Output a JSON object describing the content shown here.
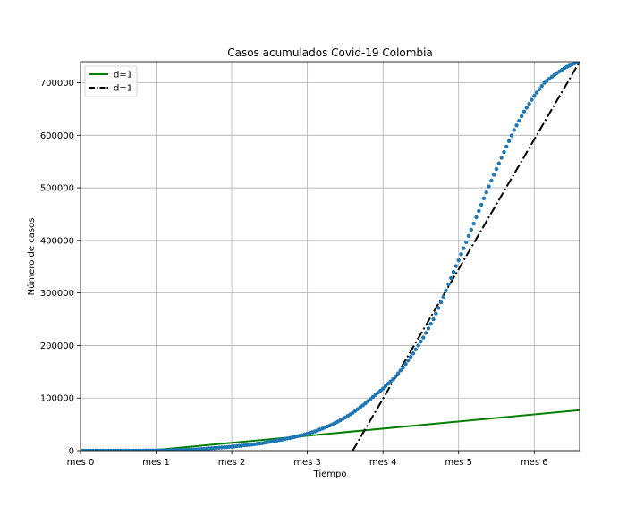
{
  "chart_data": {
    "type": "scatter",
    "title": "Casos acumulados Covid-19 Colombia",
    "xlabel": "Tiempo",
    "ylabel": "Número de casos",
    "xlim": [
      0,
      198
    ],
    "ylim": [
      0,
      740000
    ],
    "grid": true,
    "legend_position": "top-left",
    "x_ticks": [
      {
        "value": 0,
        "label": "mes 0"
      },
      {
        "value": 30,
        "label": "mes 1"
      },
      {
        "value": 60,
        "label": "mes 2"
      },
      {
        "value": 90,
        "label": "mes 3"
      },
      {
        "value": 120,
        "label": "mes 4"
      },
      {
        "value": 150,
        "label": "mes 5"
      },
      {
        "value": 180,
        "label": "mes 6"
      }
    ],
    "y_ticks": [
      {
        "value": 0,
        "label": "0"
      },
      {
        "value": 100000,
        "label": "100000"
      },
      {
        "value": 200000,
        "label": "200000"
      },
      {
        "value": 300000,
        "label": "300000"
      },
      {
        "value": 400000,
        "label": "400000"
      },
      {
        "value": 500000,
        "label": "500000"
      },
      {
        "value": 600000,
        "label": "600000"
      },
      {
        "value": 700000,
        "label": "700000"
      }
    ],
    "series": [
      {
        "name": "d=1",
        "kind": "line",
        "style": "solid",
        "color": "#008000",
        "x": [
          27,
          198
        ],
        "y": [
          0,
          77000
        ]
      },
      {
        "name": "d=1",
        "kind": "line",
        "style": "dashdot",
        "color": "#000000",
        "x": [
          108,
          198
        ],
        "y": [
          0,
          740000
        ]
      },
      {
        "kind": "scatter",
        "color": "#1f77b4",
        "x": [
          0,
          4,
          8,
          12,
          16,
          20,
          24,
          28,
          32,
          36,
          40,
          44,
          48,
          52,
          56,
          60,
          64,
          68,
          72,
          76,
          80,
          84,
          88,
          92,
          96,
          100,
          104,
          108,
          112,
          116,
          120,
          124,
          128,
          132,
          136,
          140,
          144,
          148,
          152,
          156,
          160,
          164,
          168,
          172,
          176,
          180,
          184,
          188,
          192,
          196,
          198
        ],
        "y": [
          0,
          0,
          0,
          0,
          0,
          0,
          100,
          300,
          500,
          800,
          1200,
          2000,
          3000,
          4500,
          6000,
          7500,
          9500,
          11500,
          14000,
          17500,
          21000,
          25000,
          29500,
          35000,
          42000,
          50000,
          60000,
          72000,
          86000,
          102000,
          118000,
          136000,
          158000,
          185000,
          215000,
          250000,
          293000,
          340000,
          385000,
          432000,
          480000,
          525000,
          568000,
          610000,
          645000,
          675000,
          700000,
          715000,
          728000,
          737000,
          740000
        ]
      }
    ]
  }
}
